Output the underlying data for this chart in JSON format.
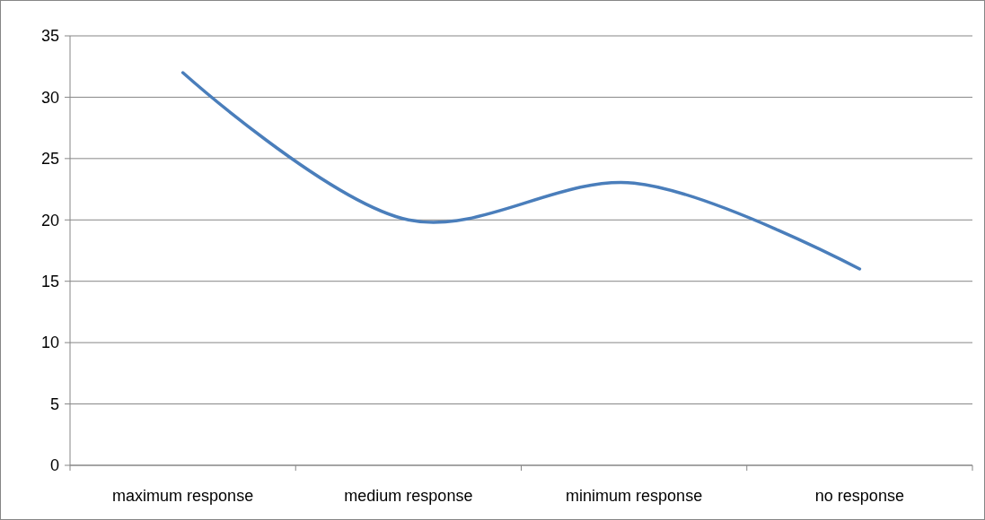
{
  "chart_data": {
    "type": "line",
    "categories": [
      "maximum response",
      "medium response",
      "minimum response",
      "no response"
    ],
    "series": [
      {
        "color": "#4a7ebb",
        "values": [
          32,
          20,
          23,
          16
        ]
      }
    ],
    "ylim": [
      0,
      35
    ],
    "yticks": [
      0,
      5,
      10,
      15,
      20,
      25,
      30,
      35
    ],
    "grid": "y",
    "line_style": "solid",
    "marker": "none"
  }
}
